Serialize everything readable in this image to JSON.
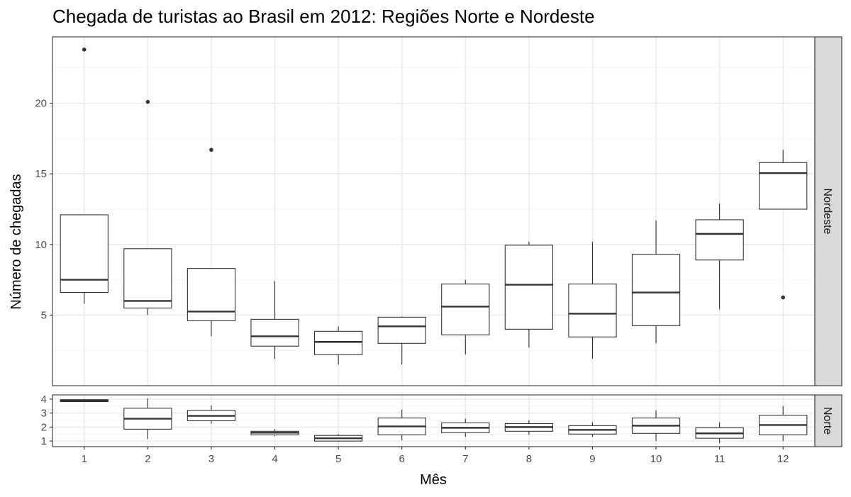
{
  "chart_data": {
    "type": "boxplot",
    "title": "Chegada de turistas ao Brasil em 2012: Regiões Norte e Nordeste",
    "xlabel": "Mês",
    "ylabel": "Número de chegadas",
    "categories": [
      "1",
      "2",
      "3",
      "4",
      "5",
      "6",
      "7",
      "8",
      "9",
      "10",
      "11",
      "12"
    ],
    "facet_layout": "rows, free y scales, strip labels on right",
    "grid": true,
    "facets": [
      {
        "label": "Nordeste",
        "ylim": [
          0,
          24.7
        ],
        "yticks": [
          5,
          10,
          15,
          20
        ],
        "boxes": [
          {
            "month": "1",
            "low": 5.8,
            "q1": 6.6,
            "median": 7.5,
            "q3": 12.1,
            "high": 12.1,
            "outliers": [
              23.8
            ]
          },
          {
            "month": "2",
            "low": 5.0,
            "q1": 5.5,
            "median": 6.0,
            "q3": 9.7,
            "high": 9.7,
            "outliers": [
              20.1
            ]
          },
          {
            "month": "3",
            "low": 3.5,
            "q1": 4.6,
            "median": 5.25,
            "q3": 8.3,
            "high": 8.3,
            "outliers": [
              16.7
            ]
          },
          {
            "month": "4",
            "low": 1.9,
            "q1": 2.8,
            "median": 3.5,
            "q3": 4.7,
            "high": 7.4,
            "outliers": []
          },
          {
            "month": "5",
            "low": 1.5,
            "q1": 2.2,
            "median": 3.1,
            "q3": 3.85,
            "high": 4.2,
            "outliers": []
          },
          {
            "month": "6",
            "low": 1.5,
            "q1": 3.0,
            "median": 4.2,
            "q3": 4.85,
            "high": 4.9,
            "outliers": []
          },
          {
            "month": "7",
            "low": 2.2,
            "q1": 3.6,
            "median": 5.6,
            "q3": 7.2,
            "high": 7.5,
            "outliers": []
          },
          {
            "month": "8",
            "low": 2.7,
            "q1": 4.0,
            "median": 7.15,
            "q3": 9.95,
            "high": 10.2,
            "outliers": []
          },
          {
            "month": "9",
            "low": 1.9,
            "q1": 3.45,
            "median": 5.1,
            "q3": 7.2,
            "high": 10.2,
            "outliers": []
          },
          {
            "month": "10",
            "low": 3.0,
            "q1": 4.25,
            "median": 6.6,
            "q3": 9.3,
            "high": 11.7,
            "outliers": []
          },
          {
            "month": "11",
            "low": 5.4,
            "q1": 8.9,
            "median": 10.75,
            "q3": 11.75,
            "high": 12.9,
            "outliers": []
          },
          {
            "month": "12",
            "low": 12.5,
            "q1": 12.5,
            "median": 15.05,
            "q3": 15.8,
            "high": 16.7,
            "outliers": [
              6.25
            ]
          }
        ]
      },
      {
        "label": "Norte",
        "ylim": [
          0.6,
          4.3
        ],
        "yticks": [
          1,
          2,
          3,
          4
        ],
        "boxes": [
          {
            "month": "1",
            "low": 3.78,
            "q1": 3.82,
            "median": 3.9,
            "q3": 3.96,
            "high": 4.0,
            "outliers": []
          },
          {
            "month": "2",
            "low": 1.15,
            "q1": 1.85,
            "median": 2.6,
            "q3": 3.35,
            "high": 4.05,
            "outliers": []
          },
          {
            "month": "3",
            "low": 2.25,
            "q1": 2.45,
            "median": 2.8,
            "q3": 3.2,
            "high": 3.55,
            "outliers": []
          },
          {
            "month": "4",
            "low": 1.35,
            "q1": 1.45,
            "median": 1.6,
            "q3": 1.7,
            "high": 1.85,
            "outliers": []
          },
          {
            "month": "5",
            "low": 0.95,
            "q1": 1.0,
            "median": 1.2,
            "q3": 1.4,
            "high": 1.5,
            "outliers": []
          },
          {
            "month": "6",
            "low": 1.05,
            "q1": 1.45,
            "median": 2.05,
            "q3": 2.65,
            "high": 3.25,
            "outliers": []
          },
          {
            "month": "7",
            "low": 1.3,
            "q1": 1.6,
            "median": 1.95,
            "q3": 2.3,
            "high": 2.6,
            "outliers": []
          },
          {
            "month": "8",
            "low": 1.45,
            "q1": 1.7,
            "median": 2.0,
            "q3": 2.25,
            "high": 2.5,
            "outliers": []
          },
          {
            "month": "9",
            "low": 1.3,
            "q1": 1.5,
            "median": 1.8,
            "q3": 2.1,
            "high": 2.35,
            "outliers": []
          },
          {
            "month": "10",
            "low": 1.0,
            "q1": 1.55,
            "median": 2.1,
            "q3": 2.65,
            "high": 3.2,
            "outliers": []
          },
          {
            "month": "11",
            "low": 0.85,
            "q1": 1.2,
            "median": 1.55,
            "q3": 1.95,
            "high": 2.35,
            "outliers": []
          },
          {
            "month": "12",
            "low": 1.0,
            "q1": 1.45,
            "median": 2.15,
            "q3": 2.85,
            "high": 3.5,
            "outliers": []
          }
        ]
      }
    ]
  },
  "colors": {
    "panel_border": "#333333",
    "grid_major": "#ebebeb",
    "grid_minor": "#f4f4f4",
    "box_line": "#333333",
    "box_fill": "#ffffff",
    "strip_fill": "#d9d9d9",
    "tick_text": "#4d4d4d"
  }
}
